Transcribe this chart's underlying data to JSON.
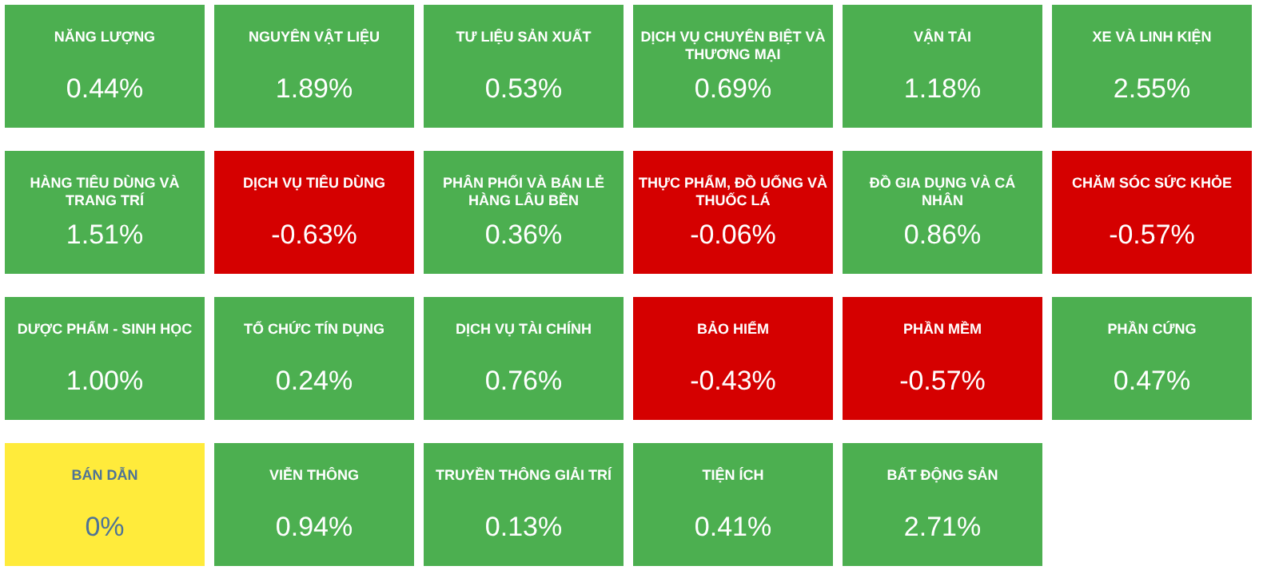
{
  "chart_data": {
    "type": "other",
    "categories": [
      "NĂNG LƯỢNG",
      "NGUYÊN VẬT LIỆU",
      "TƯ LIỆU SẢN XUẤT",
      "DỊCH VỤ CHUYÊN BIỆT VÀ THƯƠNG MẠI",
      "VẬN TẢI",
      "XE VÀ LINH KIỆN",
      "HÀNG TIÊU DÙNG VÀ TRANG TRÍ",
      "DỊCH VỤ TIÊU DÙNG",
      "PHÂN PHỐI VÀ BÁN LẺ HÀNG LÂU BỀN",
      "THỰC PHẨM, ĐỒ UỐNG VÀ THUỐC LÁ",
      "ĐỒ GIA DỤNG VÀ CÁ NHÂN",
      "CHĂM SÓC SỨC KHỎE",
      "DƯỢC PHẨM - SINH HỌC",
      "TỔ CHỨC TÍN DỤNG",
      "DỊCH VỤ TÀI CHÍNH",
      "BẢO HIỂM",
      "PHẦN MỀM",
      "PHẦN CỨNG",
      "BÁN DẪN",
      "VIỄN THÔNG",
      "TRUYỀN THÔNG GIẢI TRÍ",
      "TIỆN ÍCH",
      "BẤT ĐỘNG SẢN"
    ],
    "values": [
      0.44,
      1.89,
      0.53,
      0.69,
      1.18,
      2.55,
      1.51,
      -0.63,
      0.36,
      -0.06,
      0.86,
      -0.57,
      1.0,
      0.24,
      0.76,
      -0.43,
      -0.57,
      0.47,
      0,
      0.94,
      0.13,
      0.41,
      2.71
    ],
    "value_labels": [
      "0.44%",
      "1.89%",
      "0.53%",
      "0.69%",
      "1.18%",
      "2.55%",
      "1.51%",
      "-0.63%",
      "0.36%",
      "-0.06%",
      "0.86%",
      "-0.57%",
      "1.00%",
      "0.24%",
      "0.76%",
      "-0.43%",
      "-0.57%",
      "0.47%",
      "0%",
      "0.94%",
      "0.13%",
      "0.41%",
      "2.71%"
    ],
    "colors": [
      "#4caf50",
      "#4caf50",
      "#4caf50",
      "#4caf50",
      "#4caf50",
      "#4caf50",
      "#4caf50",
      "#d50000",
      "#4caf50",
      "#d50000",
      "#4caf50",
      "#d50000",
      "#4caf50",
      "#4caf50",
      "#4caf50",
      "#d50000",
      "#d50000",
      "#4caf50",
      "#ffeb3b",
      "#4caf50",
      "#4caf50",
      "#4caf50",
      "#4caf50"
    ]
  }
}
